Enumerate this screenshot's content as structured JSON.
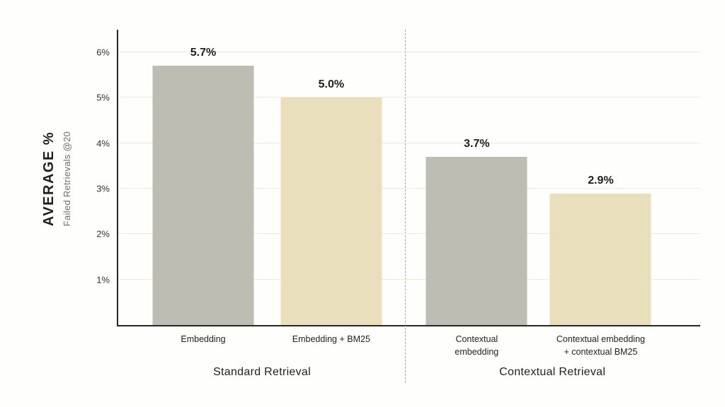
{
  "chart_data": {
    "type": "bar",
    "title": "",
    "ylabel": "AVERAGE %",
    "ylabel_subtitle": "Failed Retrievals @20",
    "xlabel": "",
    "ylim": [
      0,
      6.5
    ],
    "grid": true,
    "legend": "none",
    "yticks": [
      {
        "value": 1,
        "label": "1%"
      },
      {
        "value": 2,
        "label": "2%"
      },
      {
        "value": 3,
        "label": "3%"
      },
      {
        "value": 4,
        "label": "4%"
      },
      {
        "value": 5,
        "label": "5%"
      },
      {
        "value": 6,
        "label": "6%"
      }
    ],
    "bars": [
      {
        "category": "Embedding",
        "value": 5.7,
        "value_label": "5.7%",
        "color": "#bdbdb4",
        "group": "Standard Retrieval"
      },
      {
        "category": "Embedding + BM25",
        "value": 5.0,
        "value_label": "5.0%",
        "color": "#eadfbd",
        "group": "Standard Retrieval"
      },
      {
        "category": "Contextual\nembedding",
        "value": 3.7,
        "value_label": "3.7%",
        "color": "#bdbdb4",
        "group": "Contextual Retrieval"
      },
      {
        "category": "Contextual embedding\n+ contextual BM25",
        "value": 2.9,
        "value_label": "2.9%",
        "color": "#eadfbd",
        "group": "Contextual Retrieval"
      }
    ],
    "groups": [
      {
        "label": "Standard Retrieval"
      },
      {
        "label": "Contextual Retrieval"
      }
    ],
    "colors": {
      "bar_gray": "#bdbdb4",
      "bar_tan": "#eadfbd",
      "gridline": "#f0ead9",
      "axis": "#262625",
      "text": "#1f1f1e",
      "subtitle_text": "#6f6f69",
      "background": "#fefefc",
      "divider": "#a6a69d"
    }
  }
}
